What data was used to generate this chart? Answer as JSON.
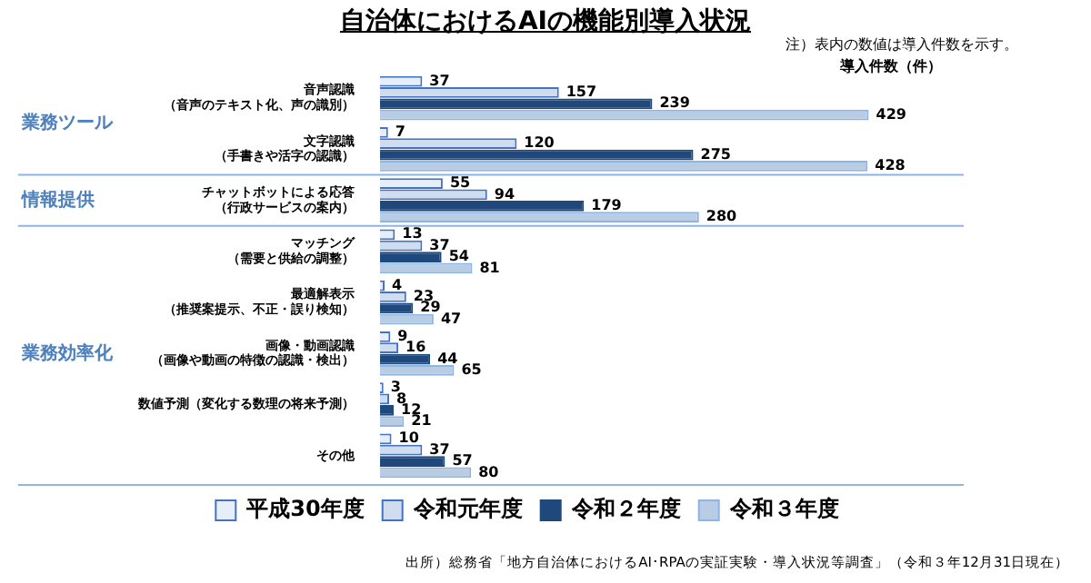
{
  "chart_data": {
    "type": "bar",
    "orientation": "horizontal",
    "title": "自治体におけるAIの機能別導入状況",
    "xlabel": "導入件数（件）",
    "categories": [
      "音声認識（音声のテキスト化、声の識別）",
      "文字認識（手書きや活字の認識）",
      "チャットボットによる応答（行政サービスの案内）",
      "マッチング（需要と供給の調整）",
      "最適解表示（推奨案提示、不正・誤り検知）",
      "画像・動画認識（画像や動画の特徴の認識・検出）",
      "数値予測（変化する数理の将来予測）",
      "その他"
    ],
    "series": [
      {
        "name": "平成30年度",
        "color": "#e6eef9",
        "values": [
          37,
          7,
          55,
          13,
          4,
          9,
          3,
          10
        ]
      },
      {
        "name": "令和元年度",
        "color": "#d0ddef",
        "values": [
          157,
          120,
          94,
          37,
          23,
          16,
          8,
          37
        ]
      },
      {
        "name": "令和２年度",
        "color": "#1f497d",
        "values": [
          239,
          275,
          179,
          54,
          29,
          44,
          12,
          57
        ]
      },
      {
        "name": "令和３年度",
        "color": "#b8cce4",
        "values": [
          429,
          428,
          280,
          81,
          47,
          65,
          21,
          80
        ]
      }
    ],
    "data_labels": true,
    "legend": "bottom",
    "grid": false,
    "annotations": [
      "業務ツール",
      "情報提供",
      "業務効率化",
      "注）表内の数値は導入件数を示す。",
      "出所）総務省「地方自治体におけるAI･RPAの実証実験・導入状況等調査」（令和３年12月31日現在）"
    ]
  }
}
